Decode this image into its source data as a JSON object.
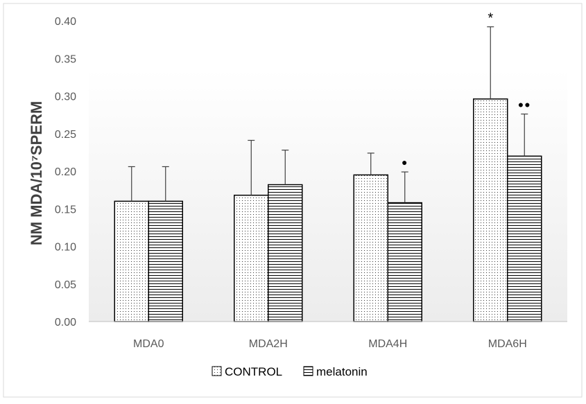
{
  "chart_data": {
    "type": "bar",
    "title": "",
    "xlabel": "",
    "ylabel": "NM MDA/10⁷SPERM",
    "ylim": [
      0,
      0.4
    ],
    "yticks": [
      "0.00",
      "0.05",
      "0.10",
      "0.15",
      "0.20",
      "0.25",
      "0.30",
      "0.35",
      "0.40"
    ],
    "categories": [
      "MDA0",
      "MDA2H",
      "MDA4H",
      "MDA6H"
    ],
    "series": [
      {
        "name": "CONTROL",
        "pattern": "dots",
        "values": [
          0.16,
          0.168,
          0.195,
          0.296
        ],
        "error_upper": [
          0.206,
          0.241,
          0.224,
          0.392
        ],
        "annotations": [
          "",
          "",
          "",
          "*"
        ]
      },
      {
        "name": "melatonin",
        "pattern": "horizontal-lines",
        "values": [
          0.16,
          0.182,
          0.158,
          0.22
        ],
        "error_upper": [
          0.206,
          0.228,
          0.199,
          0.276
        ],
        "annotations": [
          "",
          "",
          "●",
          "●●"
        ]
      }
    ],
    "grid": false,
    "legend_position": "bottom",
    "colors": {
      "bar_stroke": "#000000",
      "axis": "#bfbfbf",
      "text": "#595959",
      "ylabel": "#404040",
      "border": "#d9d9d9"
    }
  }
}
